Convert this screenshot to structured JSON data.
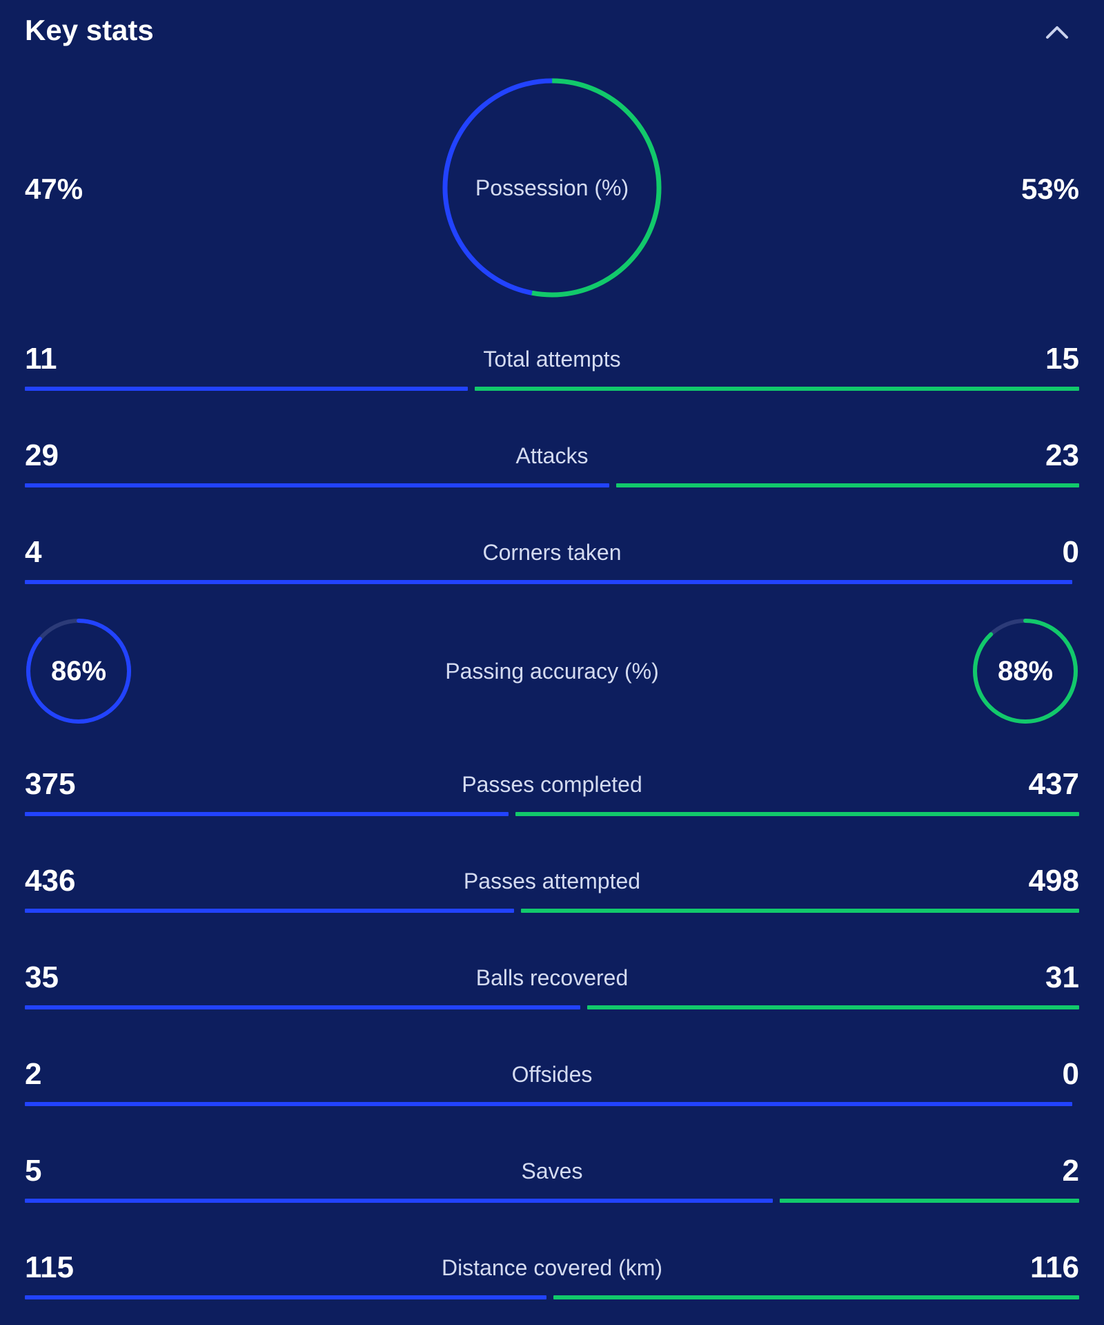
{
  "header": {
    "title": "Key stats",
    "collapse_icon": "chevron-up-icon"
  },
  "colors": {
    "background": "#0d1e5e",
    "home": "#2243ff",
    "away": "#12c96b",
    "track": "#2c3b78",
    "label": "#d4dbf0"
  },
  "possession": {
    "label": "Possession (%)",
    "home": "47%",
    "away": "53%",
    "home_pct": 47,
    "away_pct": 53
  },
  "stats": [
    {
      "key": "total-attempts",
      "label": "Total attempts",
      "home": "11",
      "away": "15",
      "home_num": 11,
      "away_num": 15
    },
    {
      "key": "attacks",
      "label": "Attacks",
      "home": "29",
      "away": "23",
      "home_num": 29,
      "away_num": 23
    },
    {
      "key": "corners-taken",
      "label": "Corners taken",
      "home": "4",
      "away": "0",
      "home_num": 4,
      "away_num": 0
    }
  ],
  "passing_accuracy": {
    "label": "Passing accuracy (%)",
    "home": "86%",
    "away": "88%",
    "home_pct": 86,
    "away_pct": 88
  },
  "stats2": [
    {
      "key": "passes-completed",
      "label": "Passes completed",
      "home": "375",
      "away": "437",
      "home_num": 375,
      "away_num": 437
    },
    {
      "key": "passes-attempted",
      "label": "Passes attempted",
      "home": "436",
      "away": "498",
      "home_num": 436,
      "away_num": 498
    },
    {
      "key": "balls-recovered",
      "label": "Balls recovered",
      "home": "35",
      "away": "31",
      "home_num": 35,
      "away_num": 31
    },
    {
      "key": "offsides",
      "label": "Offsides",
      "home": "2",
      "away": "0",
      "home_num": 2,
      "away_num": 0
    },
    {
      "key": "saves",
      "label": "Saves",
      "home": "5",
      "away": "2",
      "home_num": 5,
      "away_num": 2
    },
    {
      "key": "distance-covered",
      "label": "Distance covered (km)",
      "home": "115",
      "away": "116",
      "home_num": 115,
      "away_num": 116
    }
  ]
}
